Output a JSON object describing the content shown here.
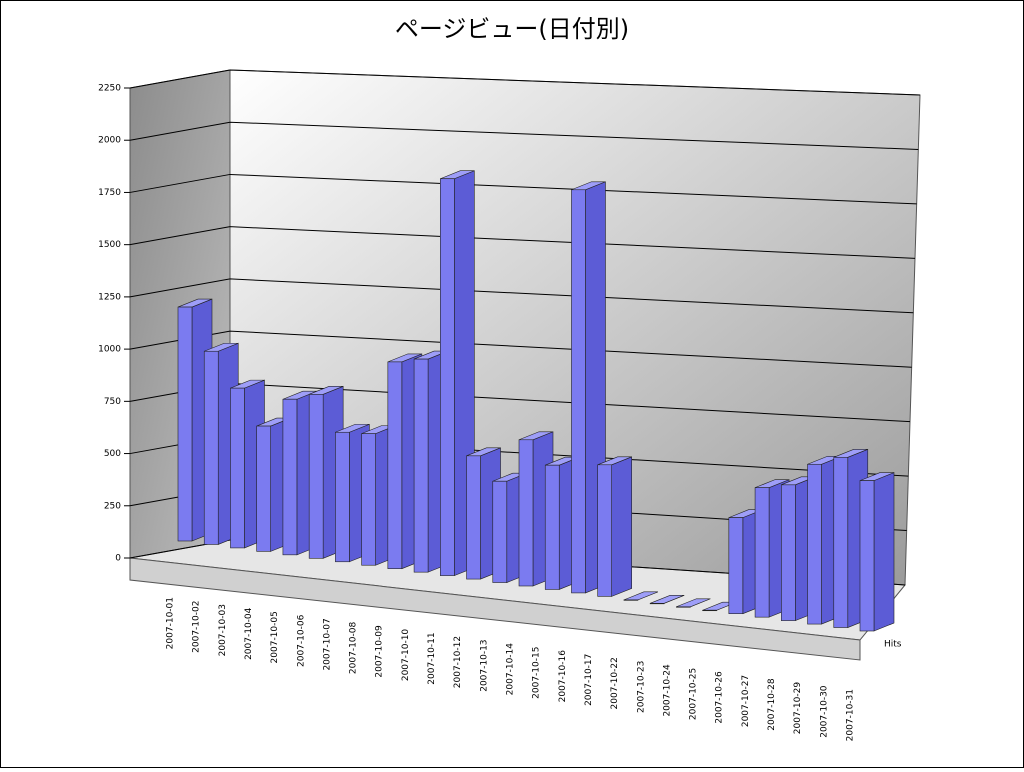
{
  "chart_data": {
    "type": "bar3d",
    "title": "ページビュー(日付別)",
    "categories": [
      "2007-10-01",
      "2007-10-02",
      "2007-10-03",
      "2007-10-04",
      "2007-10-05",
      "2007-10-06",
      "2007-10-07",
      "2007-10-08",
      "2007-10-09",
      "2007-10-10",
      "2007-10-11",
      "2007-10-12",
      "2007-10-13",
      "2007-10-14",
      "2007-10-15",
      "2007-10-16",
      "2007-10-17",
      "2007-10-22",
      "2007-10-23",
      "2007-10-24",
      "2007-10-25",
      "2007-10-26",
      "2007-10-27",
      "2007-10-28",
      "2007-10-29",
      "2007-10-30",
      "2007-10-31"
    ],
    "series": [
      {
        "name": "Hits",
        "color": "#7b7bf0",
        "values": [
          1120,
          925,
          765,
          600,
          745,
          785,
          620,
          630,
          990,
          1020,
          1900,
          590,
          485,
          700,
          595,
          1930,
          630,
          0,
          0,
          0,
          0,
          460,
          620,
          650,
          765,
          815,
          720
        ]
      }
    ],
    "ylim": [
      0,
      2250
    ],
    "yticks": [
      0,
      250,
      500,
      750,
      1000,
      1250,
      1500,
      1750,
      2000,
      2250
    ],
    "grid": true
  }
}
